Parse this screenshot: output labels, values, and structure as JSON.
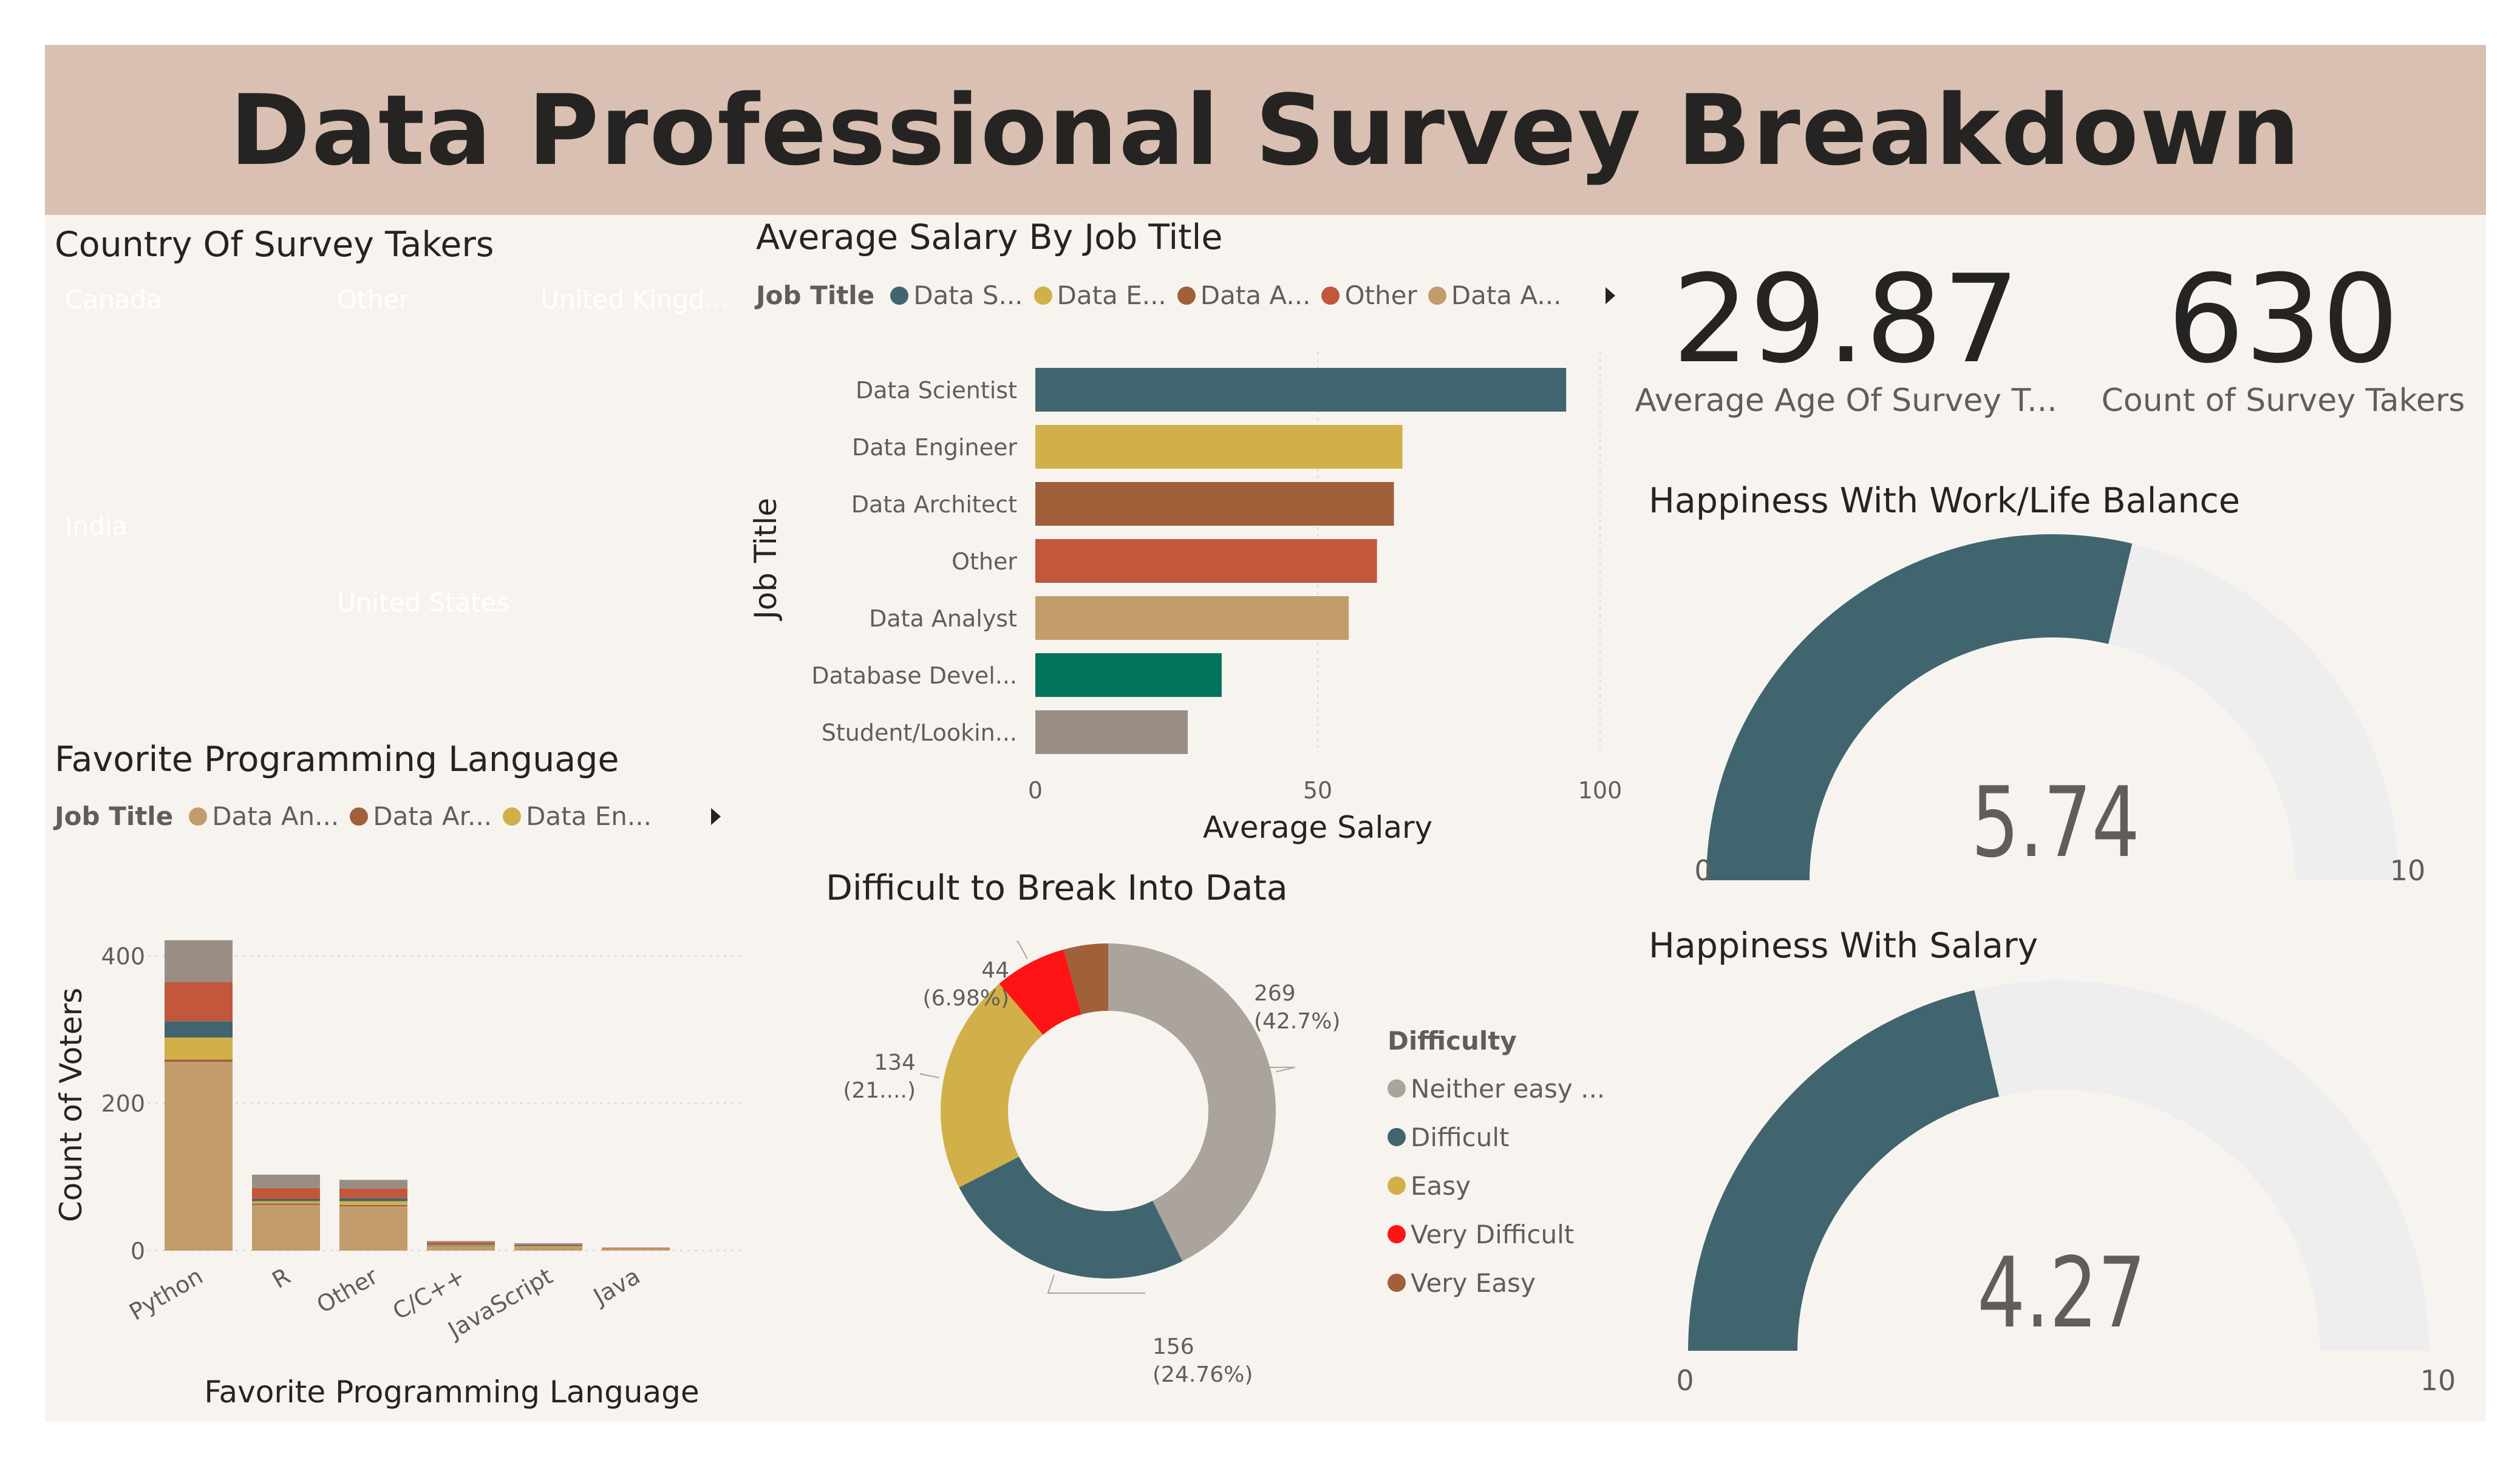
{
  "title": "Data Professional Survey Breakdown",
  "colors": {
    "teal": "#41656e",
    "mustard": "#d1b04a",
    "brown": "#a0603a",
    "red_orange": "#c2573c",
    "tan": "#c29c6b",
    "green": "#00735a",
    "gray": "#9a8e84",
    "light_gray": "#aaa49c",
    "bright_red": "#fe1414",
    "banner": "#d9c0b2",
    "background": "#f7f4f0",
    "gauge_track": "#eeeeee"
  },
  "treemap": {
    "title": "Country Of Survey Takers",
    "cells": [
      {
        "label": "Canada",
        "color": "#41656e"
      },
      {
        "label": "India",
        "color": "#d1b04a"
      },
      {
        "label": "Other",
        "color": "#a0603a"
      },
      {
        "label": "United Kingd...",
        "color": "#c2573c"
      },
      {
        "label": "United States",
        "color": "#c29c6b"
      }
    ]
  },
  "salary_chart": {
    "title": "Average Salary By Job Title",
    "legend_title": "Job Title",
    "legend_items": [
      {
        "label": "Data S...",
        "color": "#41656e"
      },
      {
        "label": "Data E...",
        "color": "#d1b04a"
      },
      {
        "label": "Data A...",
        "color": "#a0603a"
      },
      {
        "label": "Other",
        "color": "#c2573c"
      },
      {
        "label": "Data A...",
        "color": "#c29c6b"
      }
    ]
  },
  "language_chart": {
    "title": "Favorite Programming Language",
    "legend_title": "Job Title",
    "legend_items": [
      {
        "label": "Data An...",
        "color": "#c29c6b"
      },
      {
        "label": "Data Ar...",
        "color": "#a0603a"
      },
      {
        "label": "Data En...",
        "color": "#d1b04a"
      }
    ]
  },
  "donut_chart": {
    "title": "Difficult to Break Into Data",
    "legend_title": "Difficulty",
    "legend_items": [
      {
        "label": "Neither easy ...",
        "color": "#aaa49c"
      },
      {
        "label": "Difficult",
        "color": "#41656e"
      },
      {
        "label": "Easy",
        "color": "#d1b04a"
      },
      {
        "label": "Very Difficult",
        "color": "#fe1414"
      },
      {
        "label": "Very Easy",
        "color": "#a0603a"
      }
    ]
  },
  "cards": {
    "avg_age": {
      "value": "29.87",
      "label": "Average Age Of Survey T..."
    },
    "count": {
      "value": "630",
      "label": "Count of Survey Takers"
    }
  },
  "gauges": {
    "work_life": {
      "title": "Happiness With Work/Life Balance",
      "value": 5.74,
      "value_label": "5.74",
      "min_label": "0",
      "max_label": "10",
      "min": 0,
      "max": 10
    },
    "salary": {
      "title": "Happiness With Salary",
      "value": 4.27,
      "value_label": "4.27",
      "min_label": "0",
      "max_label": "10",
      "min": 0,
      "max": 10
    }
  },
  "chart_data": [
    {
      "type": "treemap",
      "title": "Country Of Survey Takers",
      "categories": [
        "Canada",
        "India",
        "Other",
        "United Kingd...",
        "United States"
      ]
    },
    {
      "type": "bar",
      "orientation": "horizontal",
      "title": "Average Salary By Job Title",
      "xlabel": "Average Salary",
      "ylabel": "Job Title",
      "categories": [
        "Data Scientist",
        "Data Engineer",
        "Data Architect",
        "Other",
        "Data Analyst",
        "Database Devel...",
        "Student/Lookin..."
      ],
      "values": [
        94,
        65,
        63.5,
        60.5,
        55.5,
        33,
        27
      ],
      "colors": [
        "#41656e",
        "#d1b04a",
        "#a0603a",
        "#c2573c",
        "#c29c6b",
        "#00735a",
        "#9a8e84"
      ],
      "xlim": [
        0,
        100
      ],
      "xticks": [
        "0",
        "50",
        "100"
      ]
    },
    {
      "type": "bar",
      "stacked": true,
      "title": "Favorite Programming Language",
      "xlabel": "Favorite Programming Language",
      "ylabel": "Count of Voters",
      "categories": [
        "Python",
        "R",
        "Other",
        "C/C++",
        "JavaScript",
        "Java"
      ],
      "ylim": [
        0,
        450
      ],
      "yticks": [
        "0",
        "200",
        "400"
      ],
      "series": [
        {
          "name": "Data An...",
          "color": "#c29c6b",
          "values": [
            256,
            62,
            60,
            6,
            5,
            3
          ]
        },
        {
          "name": "Data Ar...",
          "color": "#a0603a",
          "values": [
            3,
            2,
            2,
            1,
            0,
            0
          ]
        },
        {
          "name": "Data En...",
          "color": "#d1b04a",
          "values": [
            30,
            3,
            5,
            1,
            1,
            0
          ]
        },
        {
          "color": "#41656e",
          "values": [
            22,
            3,
            4,
            1,
            1,
            0
          ]
        },
        {
          "color": "#c2573c",
          "values": [
            53,
            15,
            13,
            2,
            1,
            1
          ]
        },
        {
          "color": "#9a8e84",
          "values": [
            57,
            18,
            12,
            2,
            2,
            0
          ]
        }
      ]
    },
    {
      "type": "pie",
      "donut": true,
      "title": "Difficult to Break Into Data",
      "categories": [
        "Neither easy ...",
        "Difficult",
        "Easy",
        "Very Difficult",
        "Very Easy"
      ],
      "values": [
        269,
        156,
        134,
        44,
        27
      ],
      "colors": [
        "#aaa49c",
        "#41656e",
        "#d1b04a",
        "#fe1414",
        "#a0603a"
      ],
      "data_labels": [
        {
          "count": "269",
          "pct": "(42.7%)"
        },
        {
          "count": "156",
          "pct": "(24.76%)"
        },
        {
          "count": "134",
          "pct": "(21....)"
        },
        {
          "count": "44",
          "pct": "(6.98%)"
        }
      ]
    }
  ]
}
